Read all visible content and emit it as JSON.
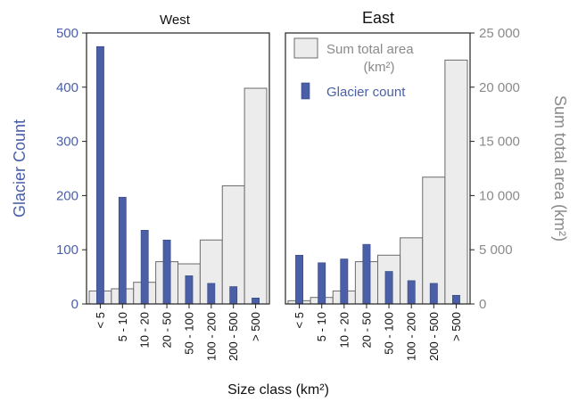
{
  "chart_data": {
    "type": "bar",
    "categories": [
      "< 5",
      "5 - 10",
      "10 - 20",
      "20 - 50",
      "50 - 100",
      "100 - 200",
      "200 - 500",
      "> 500"
    ],
    "xlabel": "Size class (km²)",
    "ylabel_left": "Glacier Count",
    "ylabel_right": "Sum total area (km²)",
    "ylim_left": [
      0,
      500
    ],
    "ylim_right": [
      0,
      25000
    ],
    "yticks_left": [
      "0",
      "100",
      "200",
      "300",
      "400",
      "500"
    ],
    "yticks_right": [
      "0",
      "5 000",
      "10 000",
      "15 000",
      "20 000",
      "25 000"
    ],
    "legend": {
      "area_line1": "Sum total area",
      "area_line2": "(km²)",
      "count": "Glacier count",
      "position": "top-left of East panel"
    },
    "colors": {
      "count": "#4a5fa6",
      "area_fill": "#ececec",
      "area_stroke": "#6b6b6b",
      "left_axis": "#4a5fa6",
      "right_axis": "#8a8a8a"
    },
    "grid": false,
    "panels": [
      {
        "title": "West",
        "series": [
          {
            "name": "Sum total area (km²)",
            "values": [
              1200,
              1400,
              2000,
              3900,
              3700,
              5900,
              10900,
              19900
            ]
          },
          {
            "name": "Glacier count",
            "values": [
              475,
              197,
              136,
              118,
              52,
              38,
              32,
              11
            ]
          }
        ]
      },
      {
        "title": "East",
        "series": [
          {
            "name": "Sum total area (km²)",
            "values": [
              300,
              600,
              1200,
              3900,
              4500,
              6100,
              11700,
              22500
            ]
          },
          {
            "name": "Glacier count",
            "values": [
              90,
              76,
              83,
              110,
              60,
              43,
              38,
              16
            ]
          }
        ]
      }
    ]
  }
}
